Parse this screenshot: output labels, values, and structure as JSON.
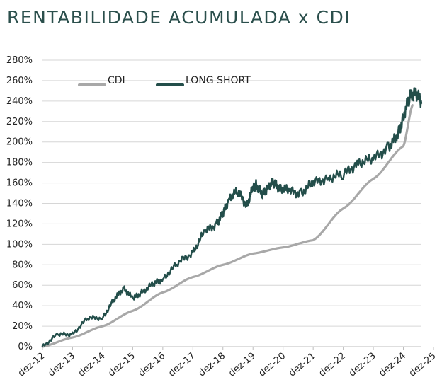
{
  "chart_data": {
    "type": "line",
    "title": "RENTABILIDADE ACUMULADA x CDI",
    "xlabel": "",
    "ylabel": "",
    "ylim": [
      0,
      280
    ],
    "y_ticks": [
      0,
      20,
      40,
      60,
      80,
      100,
      120,
      140,
      160,
      180,
      200,
      220,
      240,
      260,
      280
    ],
    "y_tick_labels": [
      "0%",
      "20%",
      "40%",
      "60%",
      "80%",
      "100%",
      "120%",
      "140%",
      "160%",
      "180%",
      "200%",
      "220%",
      "240%",
      "260%",
      "280%"
    ],
    "x_tick_labels": [
      "dez-12",
      "dez-13",
      "dez-14",
      "dez-15",
      "dez-16",
      "dez-17",
      "dez-18",
      "dez-19",
      "dez-20",
      "dez-21",
      "dez-22",
      "dez-23",
      "dez-24",
      "dez-25"
    ],
    "xlim": [
      0,
      12.6
    ],
    "legend_position": "top-left",
    "series": [
      {
        "name": "CDI",
        "color": "#a8a8a8",
        "x": [
          0,
          1,
          2,
          3,
          4,
          5,
          6,
          7,
          8,
          9,
          10,
          11,
          12,
          12.3
        ],
        "values": [
          0,
          9,
          20,
          35,
          53,
          68,
          80,
          91,
          97,
          104,
          135,
          164,
          196,
          236
        ]
      },
      {
        "name": "LONG SHORT",
        "color": "#234e4a",
        "x": [
          0,
          0.5,
          1,
          1.5,
          2,
          2.4,
          2.7,
          3,
          3.3,
          3.7,
          4,
          4.5,
          5,
          5.4,
          5.8,
          6,
          6.2,
          6.5,
          6.8,
          7,
          7.1,
          7.3,
          7.5,
          7.7,
          7.9,
          8.2,
          8.6,
          9,
          9.5,
          10,
          10.5,
          11,
          11.5,
          11.8,
          12,
          12.2,
          12.4,
          12.6
        ],
        "values": [
          0,
          12,
          12,
          28,
          28,
          47,
          57,
          47,
          53,
          62,
          66,
          82,
          92,
          113,
          120,
          130,
          145,
          152,
          138,
          155,
          158,
          148,
          157,
          160,
          155,
          152,
          150,
          160,
          165,
          168,
          180,
          183,
          195,
          205,
          225,
          243,
          250,
          238
        ]
      }
    ]
  }
}
